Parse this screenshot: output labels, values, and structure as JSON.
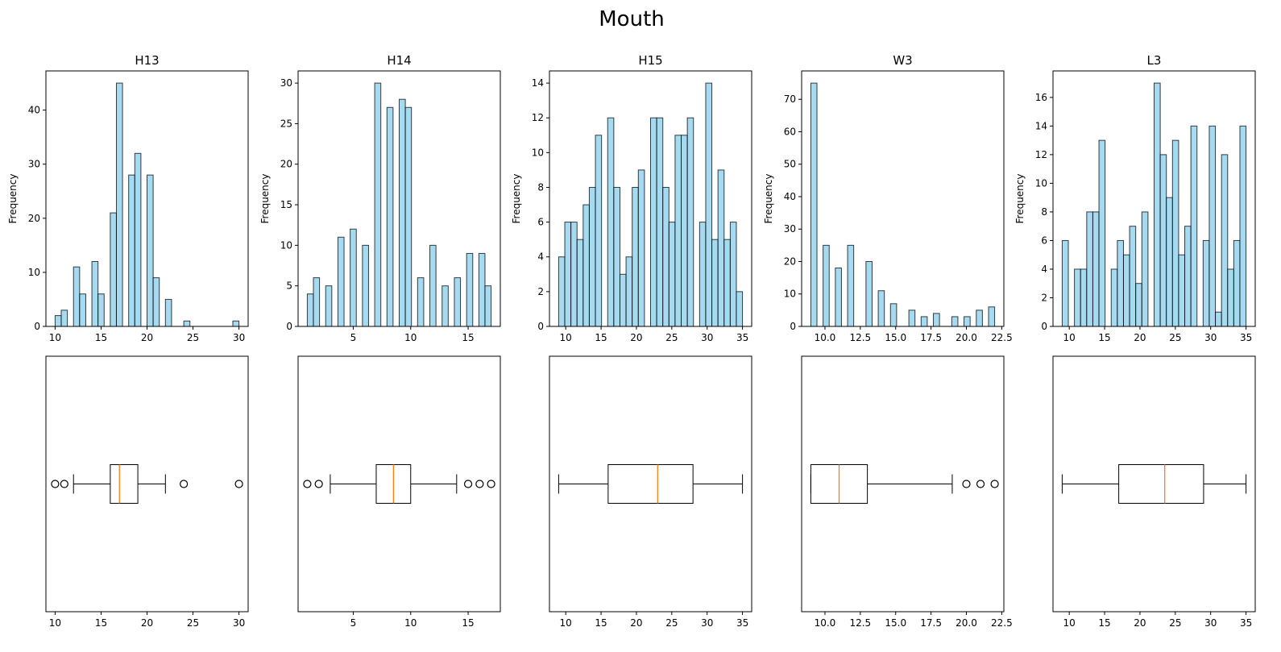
{
  "suptitle": "Mouth",
  "colors": {
    "bar_fill": "#87ceeb",
    "bar_edge": "#000000",
    "median": "#ff7f0e",
    "axes": "#000000",
    "background": "#ffffff"
  },
  "chart_data": [
    {
      "type": "bar",
      "name": "H13",
      "title": "H13",
      "ylabel": "Frequency",
      "xlim": [
        9.0,
        31.0
      ],
      "ylim": [
        0,
        47.25
      ],
      "xticks": [
        10,
        15,
        20,
        25,
        30
      ],
      "yticks": [
        0,
        10,
        20,
        30,
        40
      ],
      "bin_width": 0.667,
      "bins": [
        {
          "x": 10.0,
          "count": 2
        },
        {
          "x": 10.667,
          "count": 3
        },
        {
          "x": 12.0,
          "count": 11
        },
        {
          "x": 12.667,
          "count": 6
        },
        {
          "x": 14.0,
          "count": 12
        },
        {
          "x": 14.667,
          "count": 6
        },
        {
          "x": 16.0,
          "count": 21
        },
        {
          "x": 16.667,
          "count": 45
        },
        {
          "x": 18.0,
          "count": 28
        },
        {
          "x": 18.667,
          "count": 32
        },
        {
          "x": 20.0,
          "count": 28
        },
        {
          "x": 20.667,
          "count": 9
        },
        {
          "x": 22.0,
          "count": 5
        },
        {
          "x": 24.0,
          "count": 1
        },
        {
          "x": 29.333,
          "count": 1
        }
      ],
      "boxplot": {
        "xlim": [
          9.0,
          31.0
        ],
        "xticks": [
          10,
          15,
          20,
          25,
          30
        ],
        "whisker_low": 12,
        "q1": 16,
        "median": 17,
        "q3": 19,
        "whisker_high": 22,
        "outliers": [
          10,
          11,
          24,
          30
        ]
      }
    },
    {
      "type": "bar",
      "name": "H14",
      "title": "H14",
      "ylabel": "Frequency",
      "xlim": [
        0.2,
        17.8
      ],
      "ylim": [
        0,
        31.5
      ],
      "xticks": [
        5,
        10,
        15
      ],
      "yticks": [
        0,
        5,
        10,
        15,
        20,
        25,
        30
      ],
      "bin_width": 0.533,
      "bins": [
        {
          "x": 1.0,
          "count": 4
        },
        {
          "x": 1.533,
          "count": 6
        },
        {
          "x": 2.6,
          "count": 5
        },
        {
          "x": 3.667,
          "count": 11
        },
        {
          "x": 4.733,
          "count": 12
        },
        {
          "x": 5.8,
          "count": 10
        },
        {
          "x": 6.867,
          "count": 30
        },
        {
          "x": 7.933,
          "count": 27
        },
        {
          "x": 9.0,
          "count": 28
        },
        {
          "x": 9.533,
          "count": 27
        },
        {
          "x": 10.6,
          "count": 6
        },
        {
          "x": 11.667,
          "count": 10
        },
        {
          "x": 12.733,
          "count": 5
        },
        {
          "x": 13.8,
          "count": 6
        },
        {
          "x": 14.867,
          "count": 9
        },
        {
          "x": 15.933,
          "count": 9
        },
        {
          "x": 16.467,
          "count": 5
        }
      ],
      "boxplot": {
        "xlim": [
          0.2,
          17.8
        ],
        "xticks": [
          5,
          10,
          15
        ],
        "whisker_low": 3,
        "q1": 7,
        "median": 8.5,
        "q3": 10,
        "whisker_high": 14,
        "outliers": [
          1,
          2,
          15,
          16,
          17
        ]
      }
    },
    {
      "type": "bar",
      "name": "H15",
      "title": "H15",
      "ylabel": "Frequency",
      "xlim": [
        7.7,
        36.3
      ],
      "ylim": [
        0,
        14.7
      ],
      "xticks": [
        10,
        15,
        20,
        25,
        30,
        35
      ],
      "yticks": [
        0,
        2,
        4,
        6,
        8,
        10,
        12,
        14
      ],
      "bin_width": 0.867,
      "bins": [
        {
          "x": 9.0,
          "count": 4
        },
        {
          "x": 9.867,
          "count": 6
        },
        {
          "x": 10.733,
          "count": 6
        },
        {
          "x": 11.6,
          "count": 5
        },
        {
          "x": 12.467,
          "count": 7
        },
        {
          "x": 13.333,
          "count": 8
        },
        {
          "x": 14.2,
          "count": 11
        },
        {
          "x": 15.933,
          "count": 12
        },
        {
          "x": 16.8,
          "count": 8
        },
        {
          "x": 17.667,
          "count": 3
        },
        {
          "x": 18.533,
          "count": 4
        },
        {
          "x": 19.4,
          "count": 8
        },
        {
          "x": 20.267,
          "count": 9
        },
        {
          "x": 22.0,
          "count": 12
        },
        {
          "x": 22.867,
          "count": 12
        },
        {
          "x": 23.733,
          "count": 8
        },
        {
          "x": 24.6,
          "count": 6
        },
        {
          "x": 25.467,
          "count": 11
        },
        {
          "x": 26.333,
          "count": 11
        },
        {
          "x": 27.2,
          "count": 12
        },
        {
          "x": 28.933,
          "count": 6
        },
        {
          "x": 29.8,
          "count": 14
        },
        {
          "x": 30.667,
          "count": 5
        },
        {
          "x": 31.533,
          "count": 9
        },
        {
          "x": 32.4,
          "count": 5
        },
        {
          "x": 33.267,
          "count": 6
        },
        {
          "x": 34.133,
          "count": 2
        }
      ],
      "boxplot": {
        "xlim": [
          7.7,
          36.3
        ],
        "xticks": [
          10,
          15,
          20,
          25,
          30,
          35
        ],
        "whisker_low": 9,
        "q1": 16,
        "median": 23,
        "q3": 28,
        "whisker_high": 35,
        "outliers": []
      }
    },
    {
      "type": "bar",
      "name": "W3",
      "title": "W3",
      "ylabel": "Frequency",
      "xlim": [
        8.35,
        22.65
      ],
      "ylim": [
        0,
        78.75
      ],
      "xticks": [
        10.0,
        12.5,
        15.0,
        17.5,
        20.0,
        22.5
      ],
      "xtick_labels": [
        "10.0",
        "12.5",
        "15.0",
        "17.5",
        "20.0",
        "22.5"
      ],
      "yticks": [
        0,
        10,
        20,
        30,
        40,
        50,
        60,
        70
      ],
      "bin_width": 0.433,
      "bins": [
        {
          "x": 9.0,
          "count": 75
        },
        {
          "x": 9.867,
          "count": 25
        },
        {
          "x": 10.733,
          "count": 18
        },
        {
          "x": 11.6,
          "count": 25
        },
        {
          "x": 12.9,
          "count": 20
        },
        {
          "x": 13.767,
          "count": 11
        },
        {
          "x": 14.633,
          "count": 7
        },
        {
          "x": 15.933,
          "count": 5
        },
        {
          "x": 16.8,
          "count": 3
        },
        {
          "x": 17.667,
          "count": 4
        },
        {
          "x": 18.967,
          "count": 3
        },
        {
          "x": 19.833,
          "count": 3
        },
        {
          "x": 20.7,
          "count": 5
        },
        {
          "x": 21.567,
          "count": 6
        }
      ],
      "boxplot": {
        "xlim": [
          8.35,
          22.65
        ],
        "xticks": [
          10.0,
          12.5,
          15.0,
          17.5,
          20.0,
          22.5
        ],
        "xtick_labels": [
          "10.0",
          "12.5",
          "15.0",
          "17.5",
          "20.0",
          "22.5"
        ],
        "whisker_low": 9,
        "q1": 9,
        "median": 11,
        "q3": 13,
        "whisker_high": 19,
        "outliers": [
          20,
          21,
          22
        ]
      }
    },
    {
      "type": "bar",
      "name": "L3",
      "title": "L3",
      "ylabel": "Frequency",
      "xlim": [
        7.7,
        36.3
      ],
      "ylim": [
        0,
        17.85
      ],
      "xticks": [
        10,
        15,
        20,
        25,
        30,
        35
      ],
      "yticks": [
        0,
        2,
        4,
        6,
        8,
        10,
        12,
        14,
        16
      ],
      "bin_width": 0.867,
      "bins": [
        {
          "x": 9.0,
          "count": 6
        },
        {
          "x": 10.733,
          "count": 4
        },
        {
          "x": 11.6,
          "count": 4
        },
        {
          "x": 12.467,
          "count": 8
        },
        {
          "x": 13.333,
          "count": 8
        },
        {
          "x": 14.2,
          "count": 13
        },
        {
          "x": 15.933,
          "count": 4
        },
        {
          "x": 16.8,
          "count": 6
        },
        {
          "x": 17.667,
          "count": 5
        },
        {
          "x": 18.533,
          "count": 7
        },
        {
          "x": 19.4,
          "count": 3
        },
        {
          "x": 20.267,
          "count": 8
        },
        {
          "x": 22.0,
          "count": 17
        },
        {
          "x": 22.867,
          "count": 12
        },
        {
          "x": 23.733,
          "count": 9
        },
        {
          "x": 24.6,
          "count": 13
        },
        {
          "x": 25.467,
          "count": 5
        },
        {
          "x": 26.333,
          "count": 7
        },
        {
          "x": 27.2,
          "count": 14
        },
        {
          "x": 28.933,
          "count": 6
        },
        {
          "x": 29.8,
          "count": 14
        },
        {
          "x": 30.667,
          "count": 1
        },
        {
          "x": 31.533,
          "count": 12
        },
        {
          "x": 32.4,
          "count": 4
        },
        {
          "x": 33.267,
          "count": 6
        },
        {
          "x": 34.133,
          "count": 14
        }
      ],
      "boxplot": {
        "xlim": [
          7.7,
          36.3
        ],
        "xticks": [
          10,
          15,
          20,
          25,
          30,
          35
        ],
        "whisker_low": 9,
        "q1": 17,
        "median": 23.5,
        "q3": 29,
        "whisker_high": 35,
        "outliers": []
      }
    }
  ]
}
